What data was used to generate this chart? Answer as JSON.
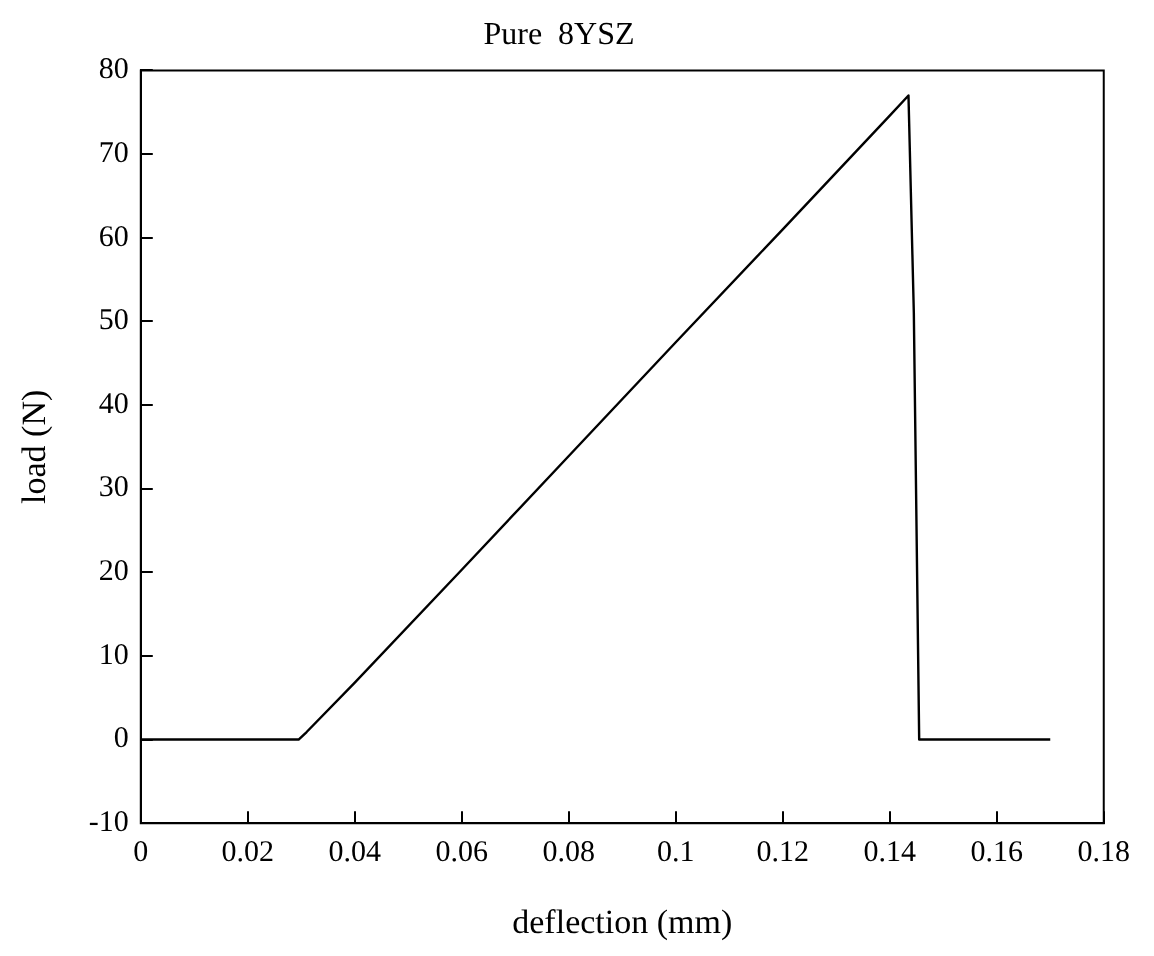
{
  "chart_data": {
    "type": "line",
    "title": "Pure  8YSZ",
    "xlabel": "deflection (mm)",
    "ylabel": "load (N)",
    "x": [
      0,
      0.028,
      0.0295,
      0.031,
      0.04,
      0.06,
      0.08,
      0.1,
      0.12,
      0.14,
      0.1435,
      0.1445,
      0.1455,
      0.17
    ],
    "series": [
      {
        "color": "#000000",
        "values": [
          0,
          0,
          0,
          0.9,
          6.8,
          20.3,
          33.9,
          47.5,
          61,
          74.6,
          77,
          51,
          0,
          0
        ]
      }
    ],
    "xlim": [
      0,
      0.18
    ],
    "xticks": [
      0,
      0.02,
      0.04,
      0.06,
      0.08,
      0.1,
      0.12,
      0.14,
      0.16,
      0.18
    ],
    "ylim": [
      -10,
      80
    ],
    "yticks": [
      -10,
      0,
      10,
      20,
      30,
      40,
      50,
      60,
      70,
      80
    ],
    "grid": false,
    "legend": false,
    "marker": "none",
    "line_style": "solid"
  }
}
